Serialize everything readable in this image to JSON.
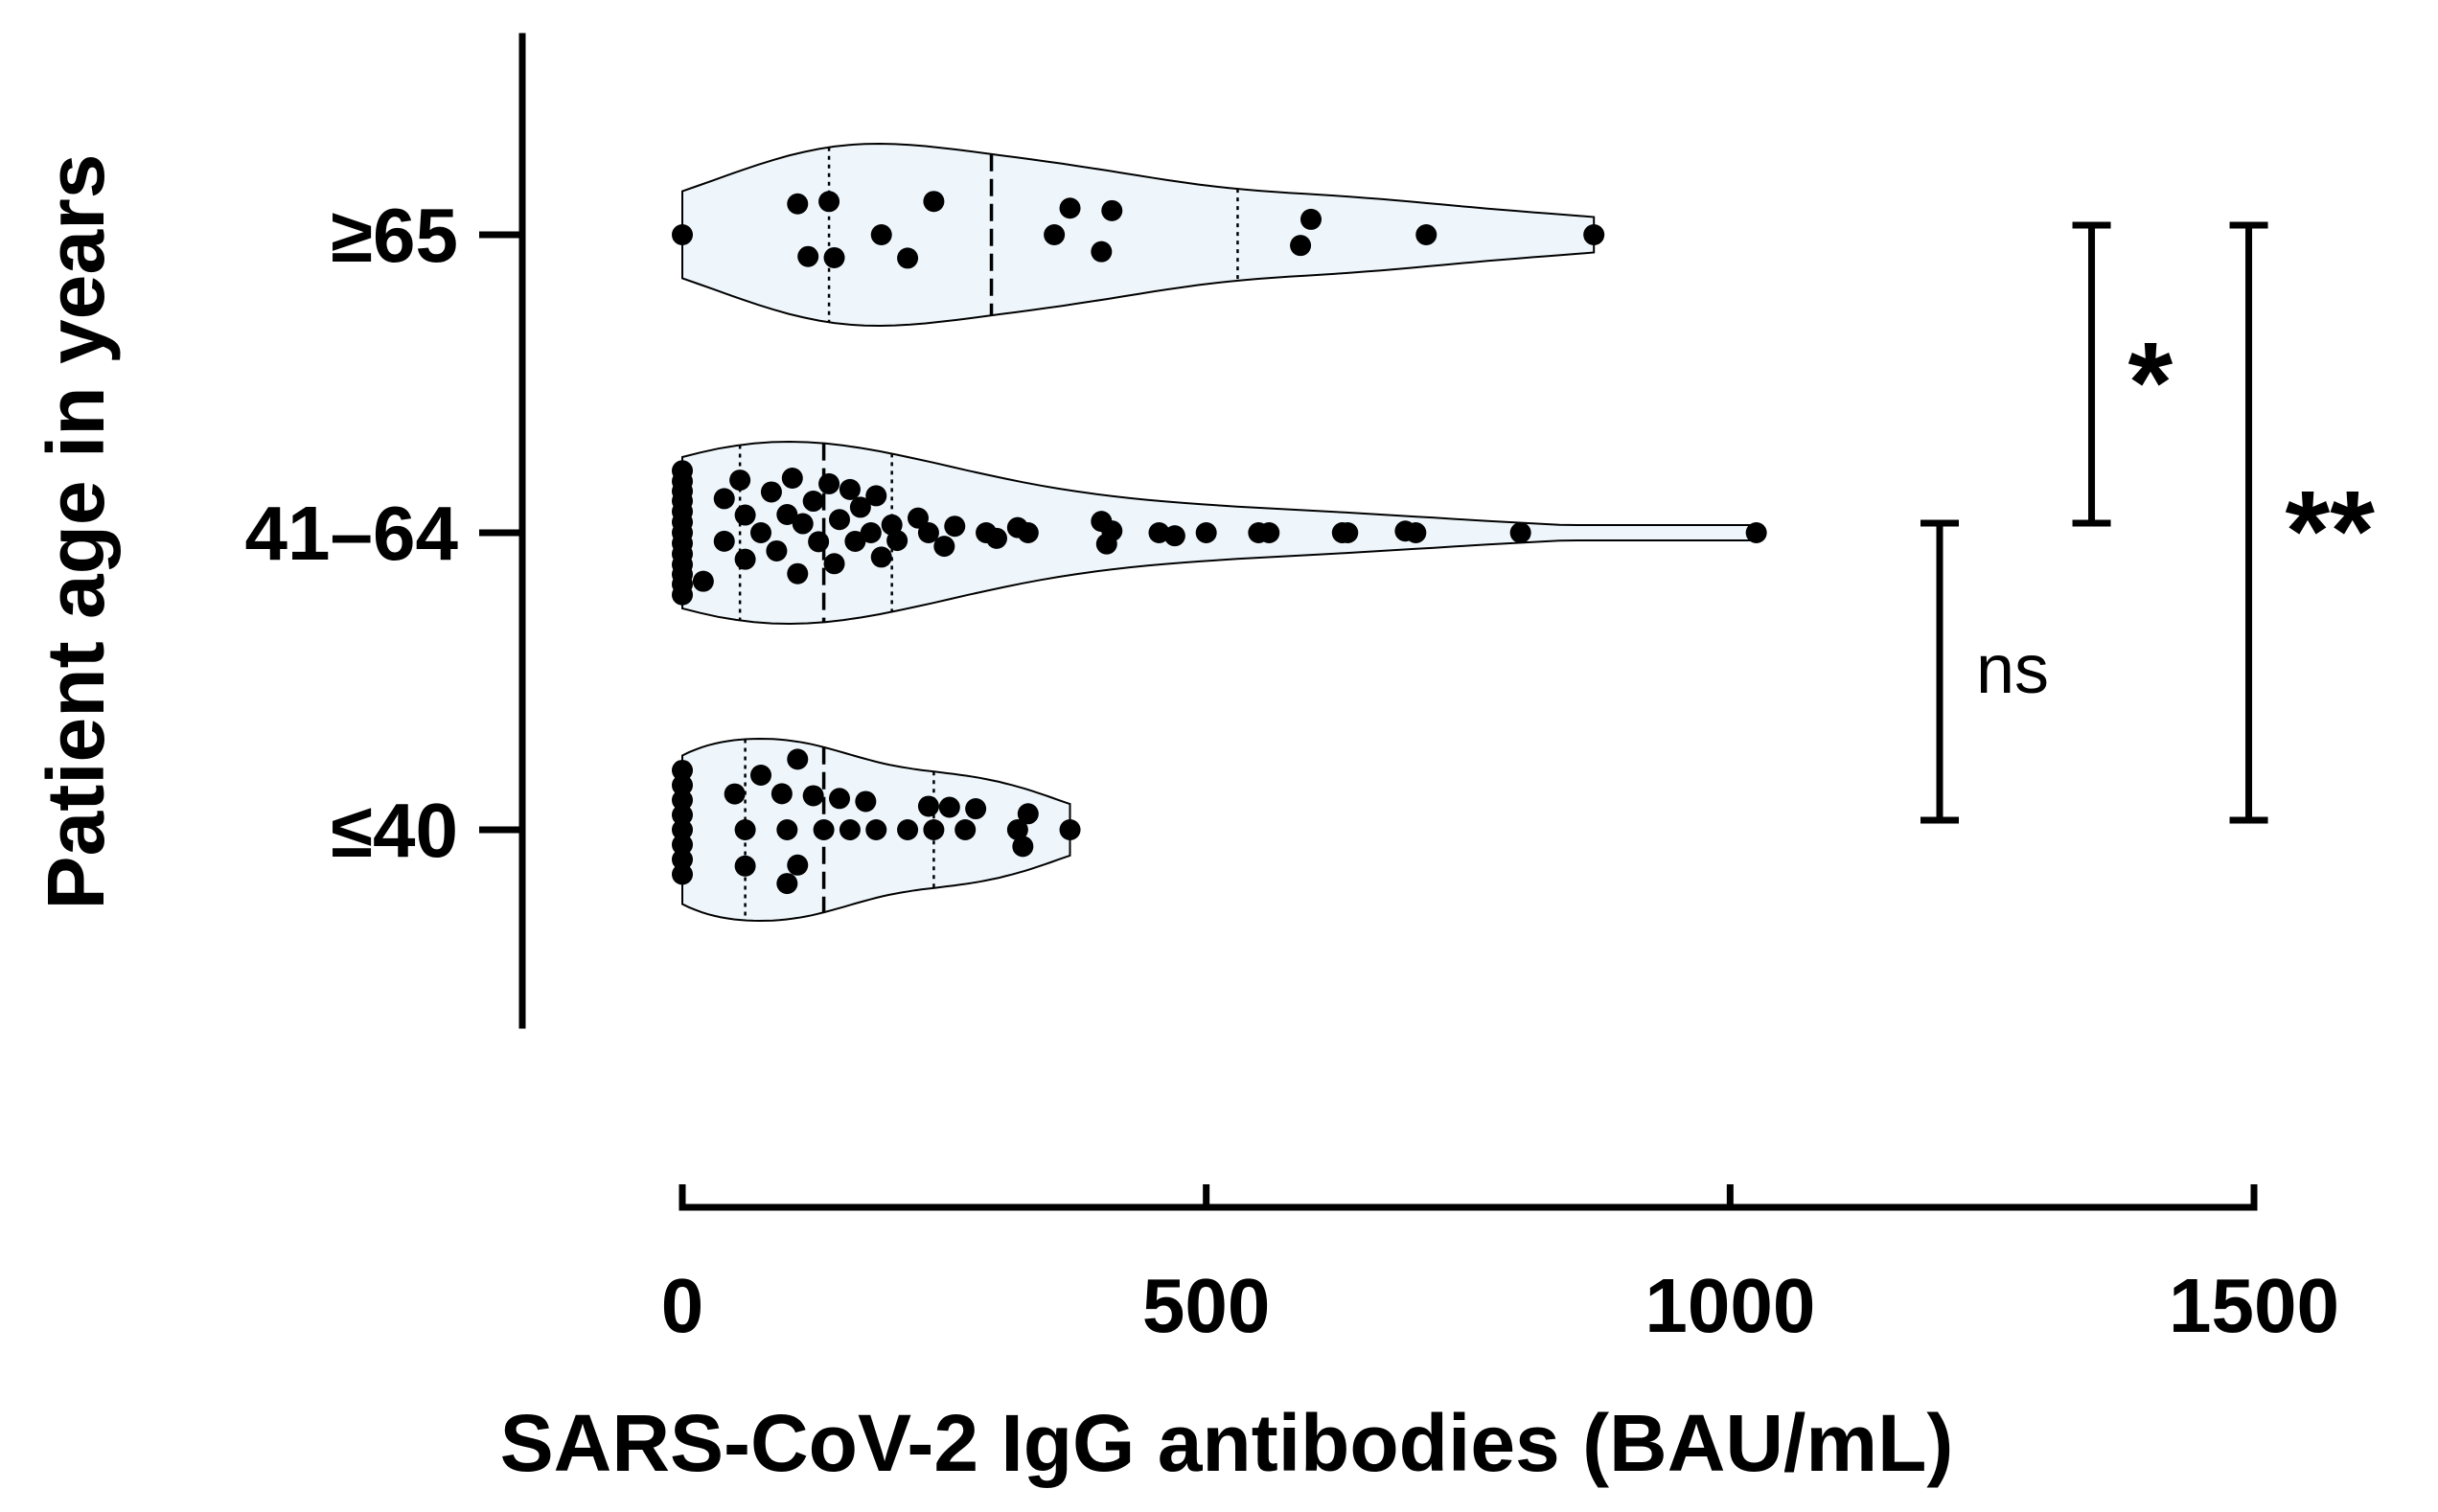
{
  "chart_data": {
    "type": "scatter",
    "subtype": "violin",
    "orientation": "horizontal",
    "xlabel": "SARS-CoV-2 IgG antibodies (BAU/mL)",
    "ylabel": "Patient age in years",
    "xlim": [
      0,
      1500
    ],
    "x_ticks": [
      "0",
      "500",
      "1000",
      "1500"
    ],
    "grid": false,
    "legend": "none",
    "point_color": "#000000",
    "violin_fill": "#eef6fb",
    "groups": [
      {
        "label": "≥65",
        "min": 0,
        "max": 870,
        "q1": 140,
        "median": 295,
        "q3": 530,
        "points": [
          [
            0,
            0
          ],
          [
            110,
            0.38
          ],
          [
            140,
            0.38
          ],
          [
            240,
            0.38
          ],
          [
            370,
            0.38
          ],
          [
            410,
            0.38
          ],
          [
            600,
            0.38
          ],
          [
            120,
            -0.26
          ],
          [
            145,
            -0.26
          ],
          [
            190,
            0.0
          ],
          [
            215,
            -0.26
          ],
          [
            355,
            0.0
          ],
          [
            400,
            -0.26
          ],
          [
            590,
            -0.26
          ],
          [
            710,
            0
          ],
          [
            870,
            0
          ]
        ]
      },
      {
        "label": "41–64",
        "min": 0,
        "max": 1025,
        "q1": 55,
        "median": 135,
        "q3": 200,
        "points": [
          [
            0,
            0.82
          ],
          [
            0,
            0.68
          ],
          [
            0,
            0.55
          ],
          [
            0,
            0.42
          ],
          [
            0,
            0.28
          ],
          [
            0,
            0.14
          ],
          [
            0,
            0
          ],
          [
            0,
            -0.14
          ],
          [
            0,
            -0.28
          ],
          [
            0,
            -0.42
          ],
          [
            0,
            -0.55
          ],
          [
            0,
            -0.68
          ],
          [
            0,
            -0.82
          ],
          [
            20,
            -0.6
          ],
          [
            40,
            0.4
          ],
          [
            40,
            -0.1
          ],
          [
            55,
            0.6
          ],
          [
            60,
            0.2
          ],
          [
            60,
            -0.3
          ],
          [
            75,
            0
          ],
          [
            85,
            0.45
          ],
          [
            90,
            -0.2
          ],
          [
            100,
            0.2
          ],
          [
            105,
            0.6
          ],
          [
            110,
            -0.45
          ],
          [
            115,
            0.1
          ],
          [
            125,
            0.35
          ],
          [
            130,
            -0.1
          ],
          [
            140,
            0.55
          ],
          [
            145,
            -0.35
          ],
          [
            150,
            0.15
          ],
          [
            160,
            0.5
          ],
          [
            165,
            -0.1
          ],
          [
            170,
            0.3
          ],
          [
            180,
            0
          ],
          [
            185,
            0.45
          ],
          [
            190,
            -0.3
          ],
          [
            200,
            0.1
          ],
          [
            205,
            -0.1
          ],
          [
            225,
            0.2
          ],
          [
            235,
            0
          ],
          [
            250,
            -0.2
          ],
          [
            260,
            0.1
          ],
          [
            290,
            0
          ],
          [
            300,
            -0.1
          ],
          [
            320,
            0.1
          ],
          [
            330,
            0
          ],
          [
            400,
            0.3
          ],
          [
            405,
            -0.3
          ],
          [
            410,
            0.05
          ],
          [
            455,
            0
          ],
          [
            470,
            -0.1
          ],
          [
            500,
            0
          ],
          [
            550,
            0
          ],
          [
            560,
            0
          ],
          [
            630,
            0
          ],
          [
            635,
            0
          ],
          [
            690,
            0.1
          ],
          [
            700,
            0
          ],
          [
            800,
            0
          ],
          [
            1025,
            0
          ]
        ]
      },
      {
        "label": "≤40",
        "min": 0,
        "max": 370,
        "q1": 60,
        "median": 135,
        "q3": 240,
        "points": [
          [
            0,
            0.8
          ],
          [
            0,
            0.6
          ],
          [
            0,
            0.4
          ],
          [
            0,
            0.2
          ],
          [
            0,
            0
          ],
          [
            0,
            -0.2
          ],
          [
            0,
            -0.4
          ],
          [
            0,
            -0.6
          ],
          [
            50,
            0.4
          ],
          [
            60,
            0
          ],
          [
            60,
            -0.4
          ],
          [
            75,
            0.6
          ],
          [
            95,
            0.4
          ],
          [
            100,
            0
          ],
          [
            100,
            -0.6
          ],
          [
            110,
            -0.4
          ],
          [
            110,
            0.8
          ],
          [
            125,
            0.4
          ],
          [
            135,
            0
          ],
          [
            150,
            0.4
          ],
          [
            160,
            0
          ],
          [
            175,
            0.4
          ],
          [
            185,
            0
          ],
          [
            215,
            0
          ],
          [
            235,
            0.4
          ],
          [
            240,
            0
          ],
          [
            255,
            0.4
          ],
          [
            270,
            0
          ],
          [
            280,
            0.4
          ],
          [
            320,
            0
          ],
          [
            330,
            0.4
          ],
          [
            325,
            -0.4
          ],
          [
            370,
            0
          ]
        ]
      }
    ],
    "comparisons": [
      {
        "from": "≤40",
        "to": "41–64",
        "label": "ns",
        "x": 1200
      },
      {
        "from": "41–64",
        "to": "≥65",
        "label": "*",
        "x": 1345
      },
      {
        "from": "≤40",
        "to": "≥65",
        "label": "**",
        "x": 1495
      }
    ]
  }
}
